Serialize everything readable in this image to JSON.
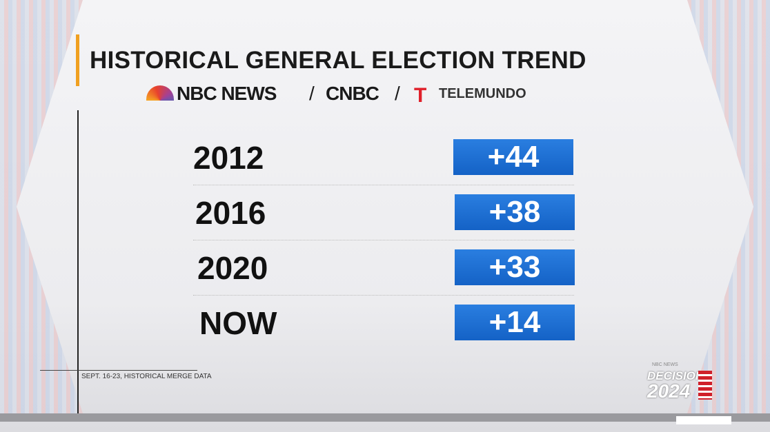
{
  "header": {
    "title": "HISTORICAL GENERAL ELECTION TREND",
    "brands": [
      "NBC NEWS",
      "CNBC",
      "TELEMUNDO"
    ]
  },
  "table": {
    "rows": [
      [
        "2012",
        "+44"
      ],
      [
        "2016",
        "+38"
      ],
      [
        "2020",
        "+33"
      ],
      [
        "NOW",
        "+14"
      ]
    ]
  },
  "footnote": "SEPT. 16-23, HISTORICAL MERGE DATA",
  "badge": {
    "network": "NBC NEWS",
    "line1": "DECISION",
    "line2": "2024"
  }
}
